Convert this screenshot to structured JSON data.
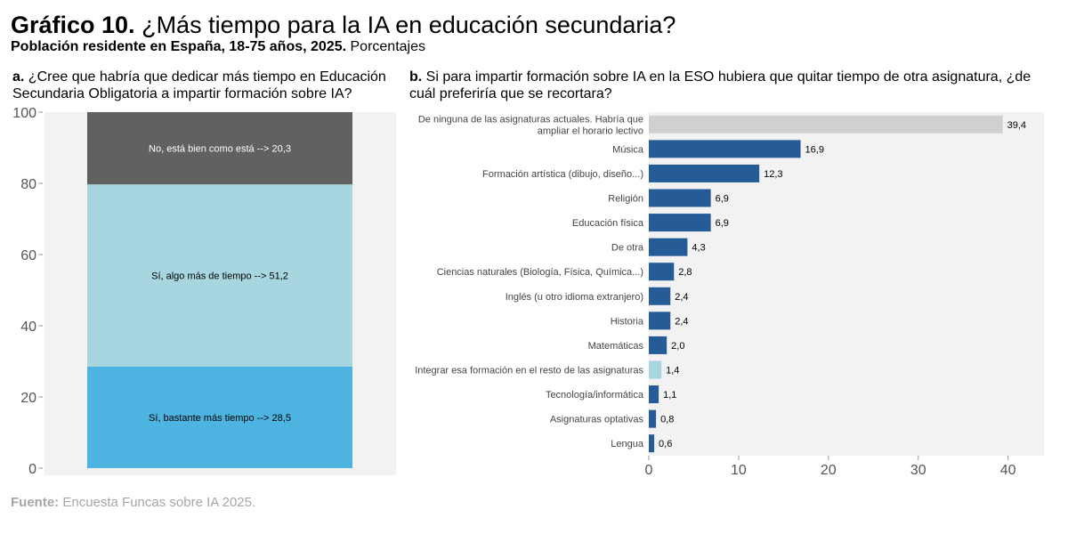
{
  "header": {
    "title_bold": "Gráfico 10.",
    "title_rest": "¿Más tiempo para la IA en educación secundaria?",
    "subtitle_bold": "Población residente en España, 18-75 años, 2025.",
    "subtitle_rest": "Porcentajes"
  },
  "panel_a": {
    "label": "a.",
    "question": "¿Cree que habría que dedicar más tiempo en Educación Secundaria Obligatoria a impartir formación sobre IA?"
  },
  "panel_b": {
    "label": "b.",
    "question": "Si para impartir formación sobre IA en la ESO hubiera que quitar tiempo de otra asignatura, ¿de cuál preferiría que se recortara?"
  },
  "chart_data": [
    {
      "type": "bar",
      "subtype": "stacked-100",
      "ylim": [
        0,
        100
      ],
      "yticks": [
        0,
        20,
        40,
        60,
        80,
        100
      ],
      "series": [
        {
          "name": "Sí, bastante más tiempo",
          "label": "Sí, bastante más tiempo  --> 28,5",
          "value": 28.5,
          "color": "#4db3e0"
        },
        {
          "name": "Sí, algo más de tiempo",
          "label": "Sí, algo más de tiempo  --> 51,2",
          "value": 51.2,
          "color": "#a7d6e0"
        },
        {
          "name": "No, está bien como está",
          "label": "No, está bien como está  --> 20,3",
          "value": 20.3,
          "color": "#616161"
        }
      ]
    },
    {
      "type": "bar",
      "orientation": "horizontal",
      "xlim": [
        0,
        44
      ],
      "xticks": [
        0,
        10,
        20,
        30,
        40
      ],
      "categories": [
        {
          "label": [
            "De ninguna de las asignaturas actuales. Habría que",
            "ampliar el horario lectivo"
          ],
          "value": 39.4,
          "value_label": "39,4",
          "color": "#d0d0d0"
        },
        {
          "label": [
            "Música"
          ],
          "value": 16.9,
          "value_label": "16,9",
          "color": "#255b96"
        },
        {
          "label": [
            "Formación artística (dibujo, diseño...)"
          ],
          "value": 12.3,
          "value_label": "12,3",
          "color": "#255b96"
        },
        {
          "label": [
            "Religión"
          ],
          "value": 6.9,
          "value_label": "6,9",
          "color": "#255b96"
        },
        {
          "label": [
            "Educación física"
          ],
          "value": 6.9,
          "value_label": "6,9",
          "color": "#255b96"
        },
        {
          "label": [
            "De otra"
          ],
          "value": 4.3,
          "value_label": "4,3",
          "color": "#255b96"
        },
        {
          "label": [
            "Ciencias naturales (Biología, Física, Química...)"
          ],
          "value": 2.8,
          "value_label": "2,8",
          "color": "#255b96"
        },
        {
          "label": [
            "Inglés (u otro idioma extranjero)"
          ],
          "value": 2.4,
          "value_label": "2,4",
          "color": "#255b96"
        },
        {
          "label": [
            "Historia"
          ],
          "value": 2.4,
          "value_label": "2,4",
          "color": "#255b96"
        },
        {
          "label": [
            "Matemáticas"
          ],
          "value": 2.0,
          "value_label": "2,0",
          "color": "#255b96"
        },
        {
          "label": [
            "Integrar esa formación en el resto de las asignaturas"
          ],
          "value": 1.4,
          "value_label": "1,4",
          "color": "#a7d6e0"
        },
        {
          "label": [
            "Tecnología/informática"
          ],
          "value": 1.1,
          "value_label": "1,1",
          "color": "#255b96"
        },
        {
          "label": [
            "Asignaturas optativas"
          ],
          "value": 0.8,
          "value_label": "0,8",
          "color": "#255b96"
        },
        {
          "label": [
            "Lengua"
          ],
          "value": 0.6,
          "value_label": "0,6",
          "color": "#255b96"
        }
      ]
    }
  ],
  "footer": {
    "source_bold": "Fuente:",
    "source_rest": "Encuesta Funcas sobre IA 2025."
  }
}
